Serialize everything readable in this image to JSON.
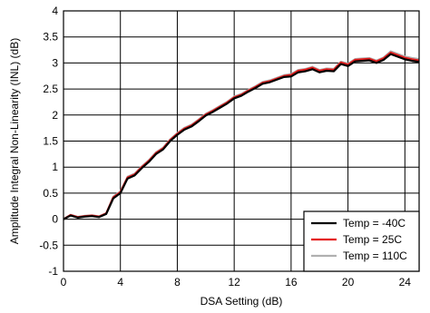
{
  "chart_data": {
    "type": "line",
    "title": "",
    "xlabel": "DSA Setting (dB)",
    "ylabel": "Amplitude Integral Non-Linearity (INL) (dB)",
    "xlim": [
      0,
      25
    ],
    "ylim": [
      -1,
      4
    ],
    "xticks": [
      0,
      4,
      8,
      12,
      16,
      20,
      24
    ],
    "xtick_labels": [
      "0",
      "4",
      "8",
      "12",
      "16",
      "20",
      "24"
    ],
    "yticks": [
      -1,
      -0.5,
      0,
      0.5,
      1,
      1.5,
      2,
      2.5,
      3,
      3.5,
      4
    ],
    "ytick_labels": [
      "-1",
      "-0.5",
      "0",
      "0.5",
      "1",
      "1.5",
      "2",
      "2.5",
      "3",
      "3.5",
      "4"
    ],
    "grid": true,
    "legend_position": "bottom-right",
    "x": [
      0,
      0.5,
      1,
      1.5,
      2,
      2.5,
      3,
      3.5,
      4,
      4.5,
      5,
      5.5,
      6,
      6.5,
      7,
      7.5,
      8,
      8.5,
      9,
      9.5,
      10,
      10.5,
      11,
      11.5,
      12,
      12.5,
      13,
      13.5,
      14,
      14.5,
      15,
      15.5,
      16,
      16.5,
      17,
      17.5,
      18,
      18.5,
      19,
      19.5,
      20,
      20.5,
      21,
      21.5,
      22,
      22.5,
      23,
      23.5,
      24,
      24.5,
      25
    ],
    "series": [
      {
        "name": "Temp = -40C",
        "color": "#000000",
        "values": [
          0.0,
          0.07,
          0.03,
          0.05,
          0.06,
          0.04,
          0.1,
          0.4,
          0.5,
          0.78,
          0.84,
          0.98,
          1.1,
          1.25,
          1.34,
          1.5,
          1.62,
          1.72,
          1.78,
          1.88,
          1.99,
          2.06,
          2.14,
          2.22,
          2.32,
          2.37,
          2.45,
          2.52,
          2.6,
          2.63,
          2.68,
          2.73,
          2.74,
          2.82,
          2.84,
          2.88,
          2.82,
          2.85,
          2.84,
          2.98,
          2.94,
          3.03,
          3.04,
          3.05,
          3.0,
          3.06,
          3.17,
          3.12,
          3.07,
          3.04,
          3.02
        ]
      },
      {
        "name": "Temp = 25C",
        "color": "#e41b1b",
        "values": [
          0.0,
          0.08,
          0.04,
          0.06,
          0.07,
          0.05,
          0.11,
          0.42,
          0.52,
          0.8,
          0.86,
          1.0,
          1.12,
          1.27,
          1.36,
          1.52,
          1.64,
          1.74,
          1.8,
          1.9,
          2.01,
          2.08,
          2.16,
          2.24,
          2.34,
          2.39,
          2.47,
          2.54,
          2.62,
          2.65,
          2.7,
          2.75,
          2.77,
          2.85,
          2.87,
          2.91,
          2.85,
          2.88,
          2.87,
          3.01,
          2.97,
          3.06,
          3.07,
          3.08,
          3.03,
          3.09,
          3.2,
          3.15,
          3.1,
          3.07,
          3.05
        ]
      },
      {
        "name": "Temp = 110C",
        "color": "#b0b0b0",
        "values": [
          0.0,
          0.09,
          0.05,
          0.07,
          0.08,
          0.06,
          0.12,
          0.44,
          0.54,
          0.82,
          0.88,
          1.02,
          1.14,
          1.29,
          1.38,
          1.54,
          1.66,
          1.76,
          1.82,
          1.92,
          2.03,
          2.1,
          2.18,
          2.26,
          2.36,
          2.41,
          2.49,
          2.56,
          2.64,
          2.67,
          2.72,
          2.77,
          2.79,
          2.87,
          2.89,
          2.93,
          2.87,
          2.9,
          2.89,
          3.03,
          2.99,
          3.08,
          3.09,
          3.1,
          3.05,
          3.11,
          3.23,
          3.18,
          3.13,
          3.1,
          3.08
        ]
      }
    ]
  }
}
